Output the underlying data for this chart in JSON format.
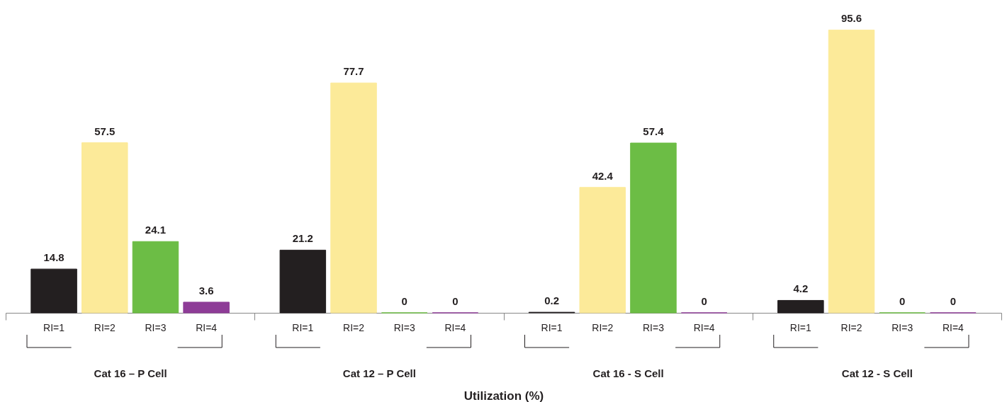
{
  "chart_data": {
    "type": "bar",
    "xlabel": "Utilization (%)",
    "categories": [
      "Cat 16 – P Cell",
      "Cat 12 – P Cell",
      "Cat 16 - S Cell",
      "Cat 12 - S Cell"
    ],
    "series": [
      {
        "name": "RI=1",
        "color": "#231f20",
        "values": [
          14.8,
          21.2,
          0.2,
          4.2
        ]
      },
      {
        "name": "RI=2",
        "color": "#fcea99",
        "values": [
          57.5,
          77.7,
          42.4,
          95.6
        ]
      },
      {
        "name": "RI=3",
        "color": "#6cbd45",
        "values": [
          24.1,
          0,
          57.4,
          0
        ]
      },
      {
        "name": "RI=4",
        "color": "#8e3c97",
        "values": [
          3.6,
          0,
          0,
          0
        ]
      }
    ],
    "data_labels": true
  }
}
